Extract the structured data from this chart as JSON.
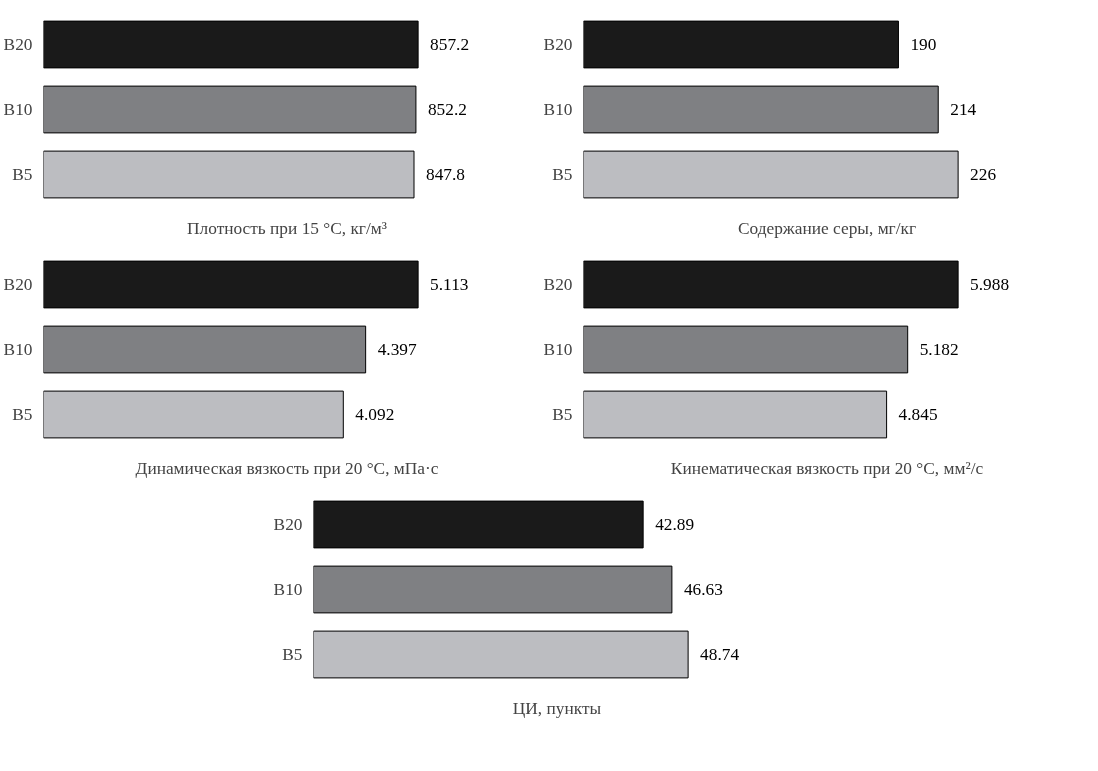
{
  "chart_data": [
    {
      "type": "bar",
      "orientation": "horizontal",
      "categories": [
        "B20",
        "B10",
        "B5"
      ],
      "values": [
        857.2,
        852.2,
        847.8
      ],
      "colors": [
        "#1a1a1a",
        "#7f8083",
        "#bcbdc1"
      ],
      "xlabel": "Плотность при 15 °C, кг/м³",
      "data_labels": true
    },
    {
      "type": "bar",
      "orientation": "horizontal",
      "categories": [
        "B20",
        "B10",
        "B5"
      ],
      "values": [
        190,
        214,
        226
      ],
      "colors": [
        "#1a1a1a",
        "#7f8083",
        "#bcbdc1"
      ],
      "xlabel": "Содержание серы, мг/кг",
      "data_labels": true
    },
    {
      "type": "bar",
      "orientation": "horizontal",
      "categories": [
        "B20",
        "B10",
        "B5"
      ],
      "values": [
        5.113,
        4.397,
        4.092
      ],
      "colors": [
        "#1a1a1a",
        "#7f8083",
        "#bcbdc1"
      ],
      "xlabel": "Динамическая вязкость при 20 °C, мПа·с",
      "data_labels": true
    },
    {
      "type": "bar",
      "orientation": "horizontal",
      "categories": [
        "B20",
        "B10",
        "B5"
      ],
      "values": [
        5.988,
        5.182,
        4.845
      ],
      "colors": [
        "#1a1a1a",
        "#7f8083",
        "#bcbdc1"
      ],
      "xlabel": "Кинематическая вязкость при 20 °C, мм²/с",
      "data_labels": true
    },
    {
      "type": "bar",
      "orientation": "horizontal",
      "categories": [
        "B20",
        "B10",
        "B5"
      ],
      "values": [
        42.89,
        46.63,
        48.74
      ],
      "colors": [
        "#1a1a1a",
        "#7f8083",
        "#bcbdc1"
      ],
      "xlabel": "ЦИ, пункты",
      "data_labels": true
    }
  ]
}
